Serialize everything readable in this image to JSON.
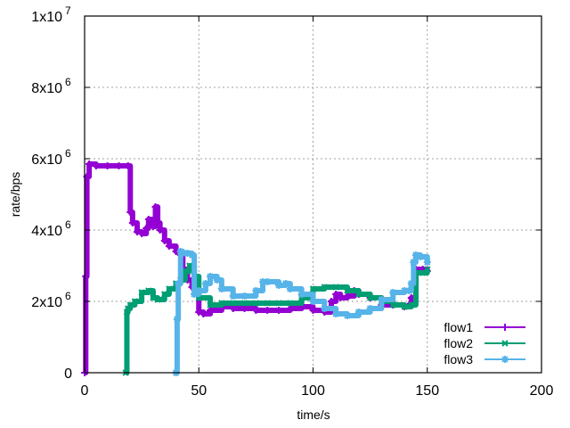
{
  "chart_data": {
    "type": "line",
    "title": "",
    "xlabel": "time/s",
    "ylabel": "rate/bps",
    "xlim": [
      0,
      200
    ],
    "ylim": [
      0,
      10000000
    ],
    "grid": true,
    "legend_position": "bottom-right",
    "x_ticks": [
      0,
      50,
      100,
      150,
      200
    ],
    "x_tick_labels": [
      "0",
      "50",
      "100",
      "150",
      "200"
    ],
    "y_ticks": [
      0,
      2000000,
      4000000,
      6000000,
      8000000,
      10000000
    ],
    "y_tick_labels": [
      {
        "base": "0",
        "exp": ""
      },
      {
        "base": "2x10",
        "exp": "6"
      },
      {
        "base": "4x10",
        "exp": "6"
      },
      {
        "base": "6x10",
        "exp": "6"
      },
      {
        "base": "8x10",
        "exp": "6"
      },
      {
        "base": "1x10",
        "exp": "7"
      }
    ],
    "series": [
      {
        "name": "flow1",
        "color": "#9400d3",
        "marker": "plus",
        "x": [
          0,
          0.5,
          1,
          2,
          5,
          10,
          15,
          19,
          20,
          21,
          23,
          25,
          27,
          28,
          30,
          31,
          32,
          33,
          35,
          37,
          40,
          42,
          43,
          45,
          47,
          50,
          52,
          55,
          60,
          65,
          70,
          75,
          80,
          85,
          90,
          95,
          100,
          105,
          108,
          110,
          112,
          115,
          118,
          120,
          125,
          130,
          135,
          140,
          142,
          143,
          145,
          148,
          150
        ],
        "y": [
          0,
          2700000,
          5500000,
          5850000,
          5800000,
          5800000,
          5800000,
          5800000,
          4500000,
          4200000,
          3950000,
          3900000,
          4050000,
          4300000,
          4100000,
          4650000,
          4200000,
          4000000,
          3700000,
          3550000,
          3400000,
          3300000,
          2900000,
          2600000,
          2400000,
          1700000,
          1650000,
          1750000,
          1850000,
          1800000,
          1800000,
          1750000,
          1750000,
          1750000,
          1800000,
          1850000,
          1750000,
          1700000,
          2000000,
          2200000,
          2100000,
          2150000,
          2300000,
          2200000,
          2100000,
          1900000,
          1900000,
          1850000,
          1900000,
          2100000,
          2900000,
          2900000,
          2850000
        ]
      },
      {
        "name": "flow2",
        "color": "#009e73",
        "marker": "cross",
        "x": [
          18,
          18.5,
          19,
          20,
          22,
          25,
          28,
          30,
          32,
          35,
          37,
          40,
          42,
          44,
          46,
          48,
          50,
          55,
          60,
          65,
          70,
          75,
          80,
          85,
          90,
          95,
          100,
          105,
          110,
          115,
          120,
          125,
          130,
          135,
          140,
          143,
          145,
          148,
          150
        ],
        "y": [
          0,
          1700000,
          1800000,
          1900000,
          2000000,
          2250000,
          2300000,
          2100000,
          2050000,
          2200000,
          2350000,
          2500000,
          2600000,
          2850000,
          3000000,
          2700000,
          2100000,
          1900000,
          1950000,
          1950000,
          1950000,
          1950000,
          1950000,
          1950000,
          1950000,
          2100000,
          2350000,
          2400000,
          2400000,
          2300000,
          2200000,
          2100000,
          2000000,
          1900000,
          1850000,
          1900000,
          2800000,
          2800000,
          2900000
        ]
      },
      {
        "name": "flow3",
        "color": "#56b4e9",
        "marker": "star",
        "x": [
          40,
          40.5,
          41,
          42,
          43,
          45,
          47,
          48,
          50,
          53,
          55,
          58,
          60,
          65,
          70,
          75,
          78,
          80,
          85,
          88,
          90,
          95,
          100,
          105,
          110,
          115,
          120,
          125,
          130,
          135,
          140,
          142,
          143,
          144,
          145,
          147,
          150
        ],
        "y": [
          0,
          1500000,
          2500000,
          3400000,
          3350000,
          3350000,
          3300000,
          2200000,
          2300000,
          2500000,
          2700000,
          2600000,
          2350000,
          2150000,
          2150000,
          2300000,
          2550000,
          2550000,
          2450000,
          2500000,
          2350000,
          2200000,
          2000000,
          1800000,
          1650000,
          1600000,
          1700000,
          1800000,
          2050000,
          2250000,
          2300000,
          2300000,
          2500000,
          3100000,
          3300000,
          3250000,
          3100000
        ]
      }
    ]
  },
  "legend": {
    "items": [
      {
        "label": "flow1",
        "color": "#9400d3",
        "marker": "plus-icon"
      },
      {
        "label": "flow2",
        "color": "#009e73",
        "marker": "cross-icon"
      },
      {
        "label": "flow3",
        "color": "#56b4e9",
        "marker": "star-icon"
      }
    ]
  }
}
